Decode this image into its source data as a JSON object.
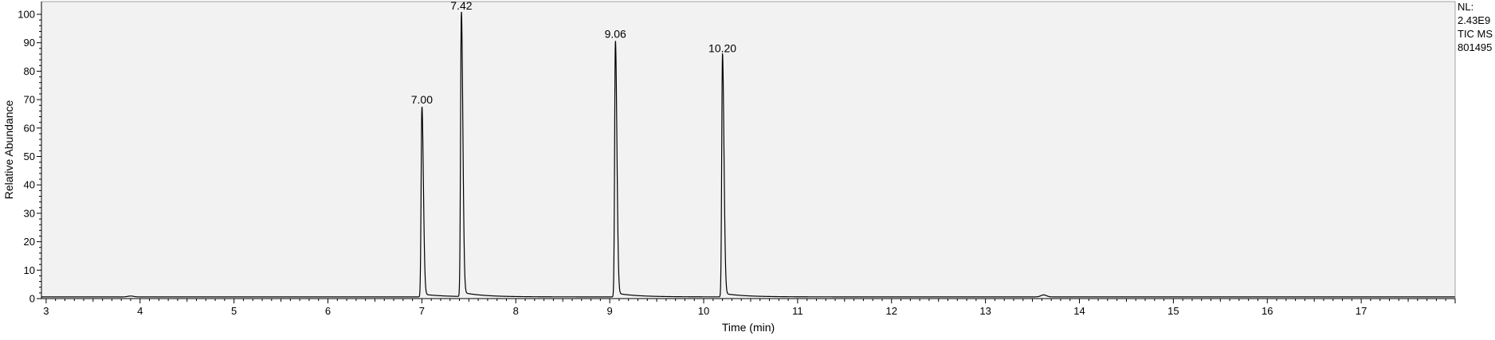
{
  "chart_data": {
    "type": "line",
    "xlabel": "Time (min)",
    "ylabel": "Relative Abundance",
    "xlim": [
      2.95,
      18.0
    ],
    "ylim": [
      0,
      100
    ],
    "x_ticks": [
      3,
      4,
      5,
      6,
      7,
      8,
      9,
      10,
      11,
      12,
      13,
      14,
      15,
      16,
      17
    ],
    "y_ticks": [
      0,
      10,
      20,
      30,
      40,
      50,
      60,
      70,
      80,
      90,
      100
    ],
    "grid": false,
    "plot_background": "#f2f2f2",
    "line_color": "#000000",
    "baseline": 0.6,
    "peaks": [
      {
        "label": "7.00",
        "x": 7.0,
        "y": 67
      },
      {
        "label": "7.42",
        "x": 7.42,
        "y": 100
      },
      {
        "label": "9.06",
        "x": 9.06,
        "y": 90
      },
      {
        "label": "10.20",
        "x": 10.2,
        "y": 85
      }
    ],
    "minor_features": [
      {
        "x": 3.9,
        "y": 0.9
      },
      {
        "x": 13.62,
        "y": 1.3
      }
    ],
    "annotation": [
      "NL:",
      "2.43E9",
      "TIC  MS",
      "801495"
    ]
  }
}
